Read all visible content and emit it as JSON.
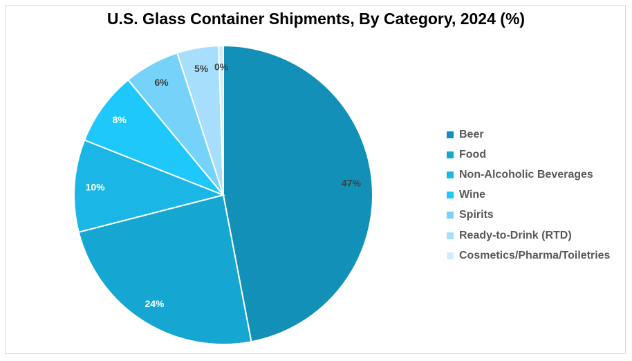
{
  "chart_data": {
    "type": "pie",
    "title": "U.S. Glass Container Shipments, By Category, 2024 (%)",
    "categories": [
      "Beer",
      "Food",
      "Non-Alcoholic Beverages",
      "Wine",
      "Spirits",
      "Ready-to-Drink (RTD)",
      "Cosmetics/Pharma/Toiletries"
    ],
    "values": [
      47,
      24,
      10,
      8,
      6,
      4.5,
      0.5
    ],
    "data_labels": [
      "47%",
      "24%",
      "10%",
      "8%",
      "6%",
      "5%",
      "0%"
    ],
    "colors": [
      "#1390b8",
      "#15a6d1",
      "#1ab7e6",
      "#1fc8fb",
      "#75d2f9",
      "#a6defb",
      "#cfecfc"
    ],
    "label_colors": [
      "#404040",
      "#ffffff",
      "#ffffff",
      "#ffffff",
      "#404040",
      "#404040",
      "#404040"
    ],
    "legend_position": "right",
    "start_angle_deg": 0,
    "direction": "clockwise"
  }
}
